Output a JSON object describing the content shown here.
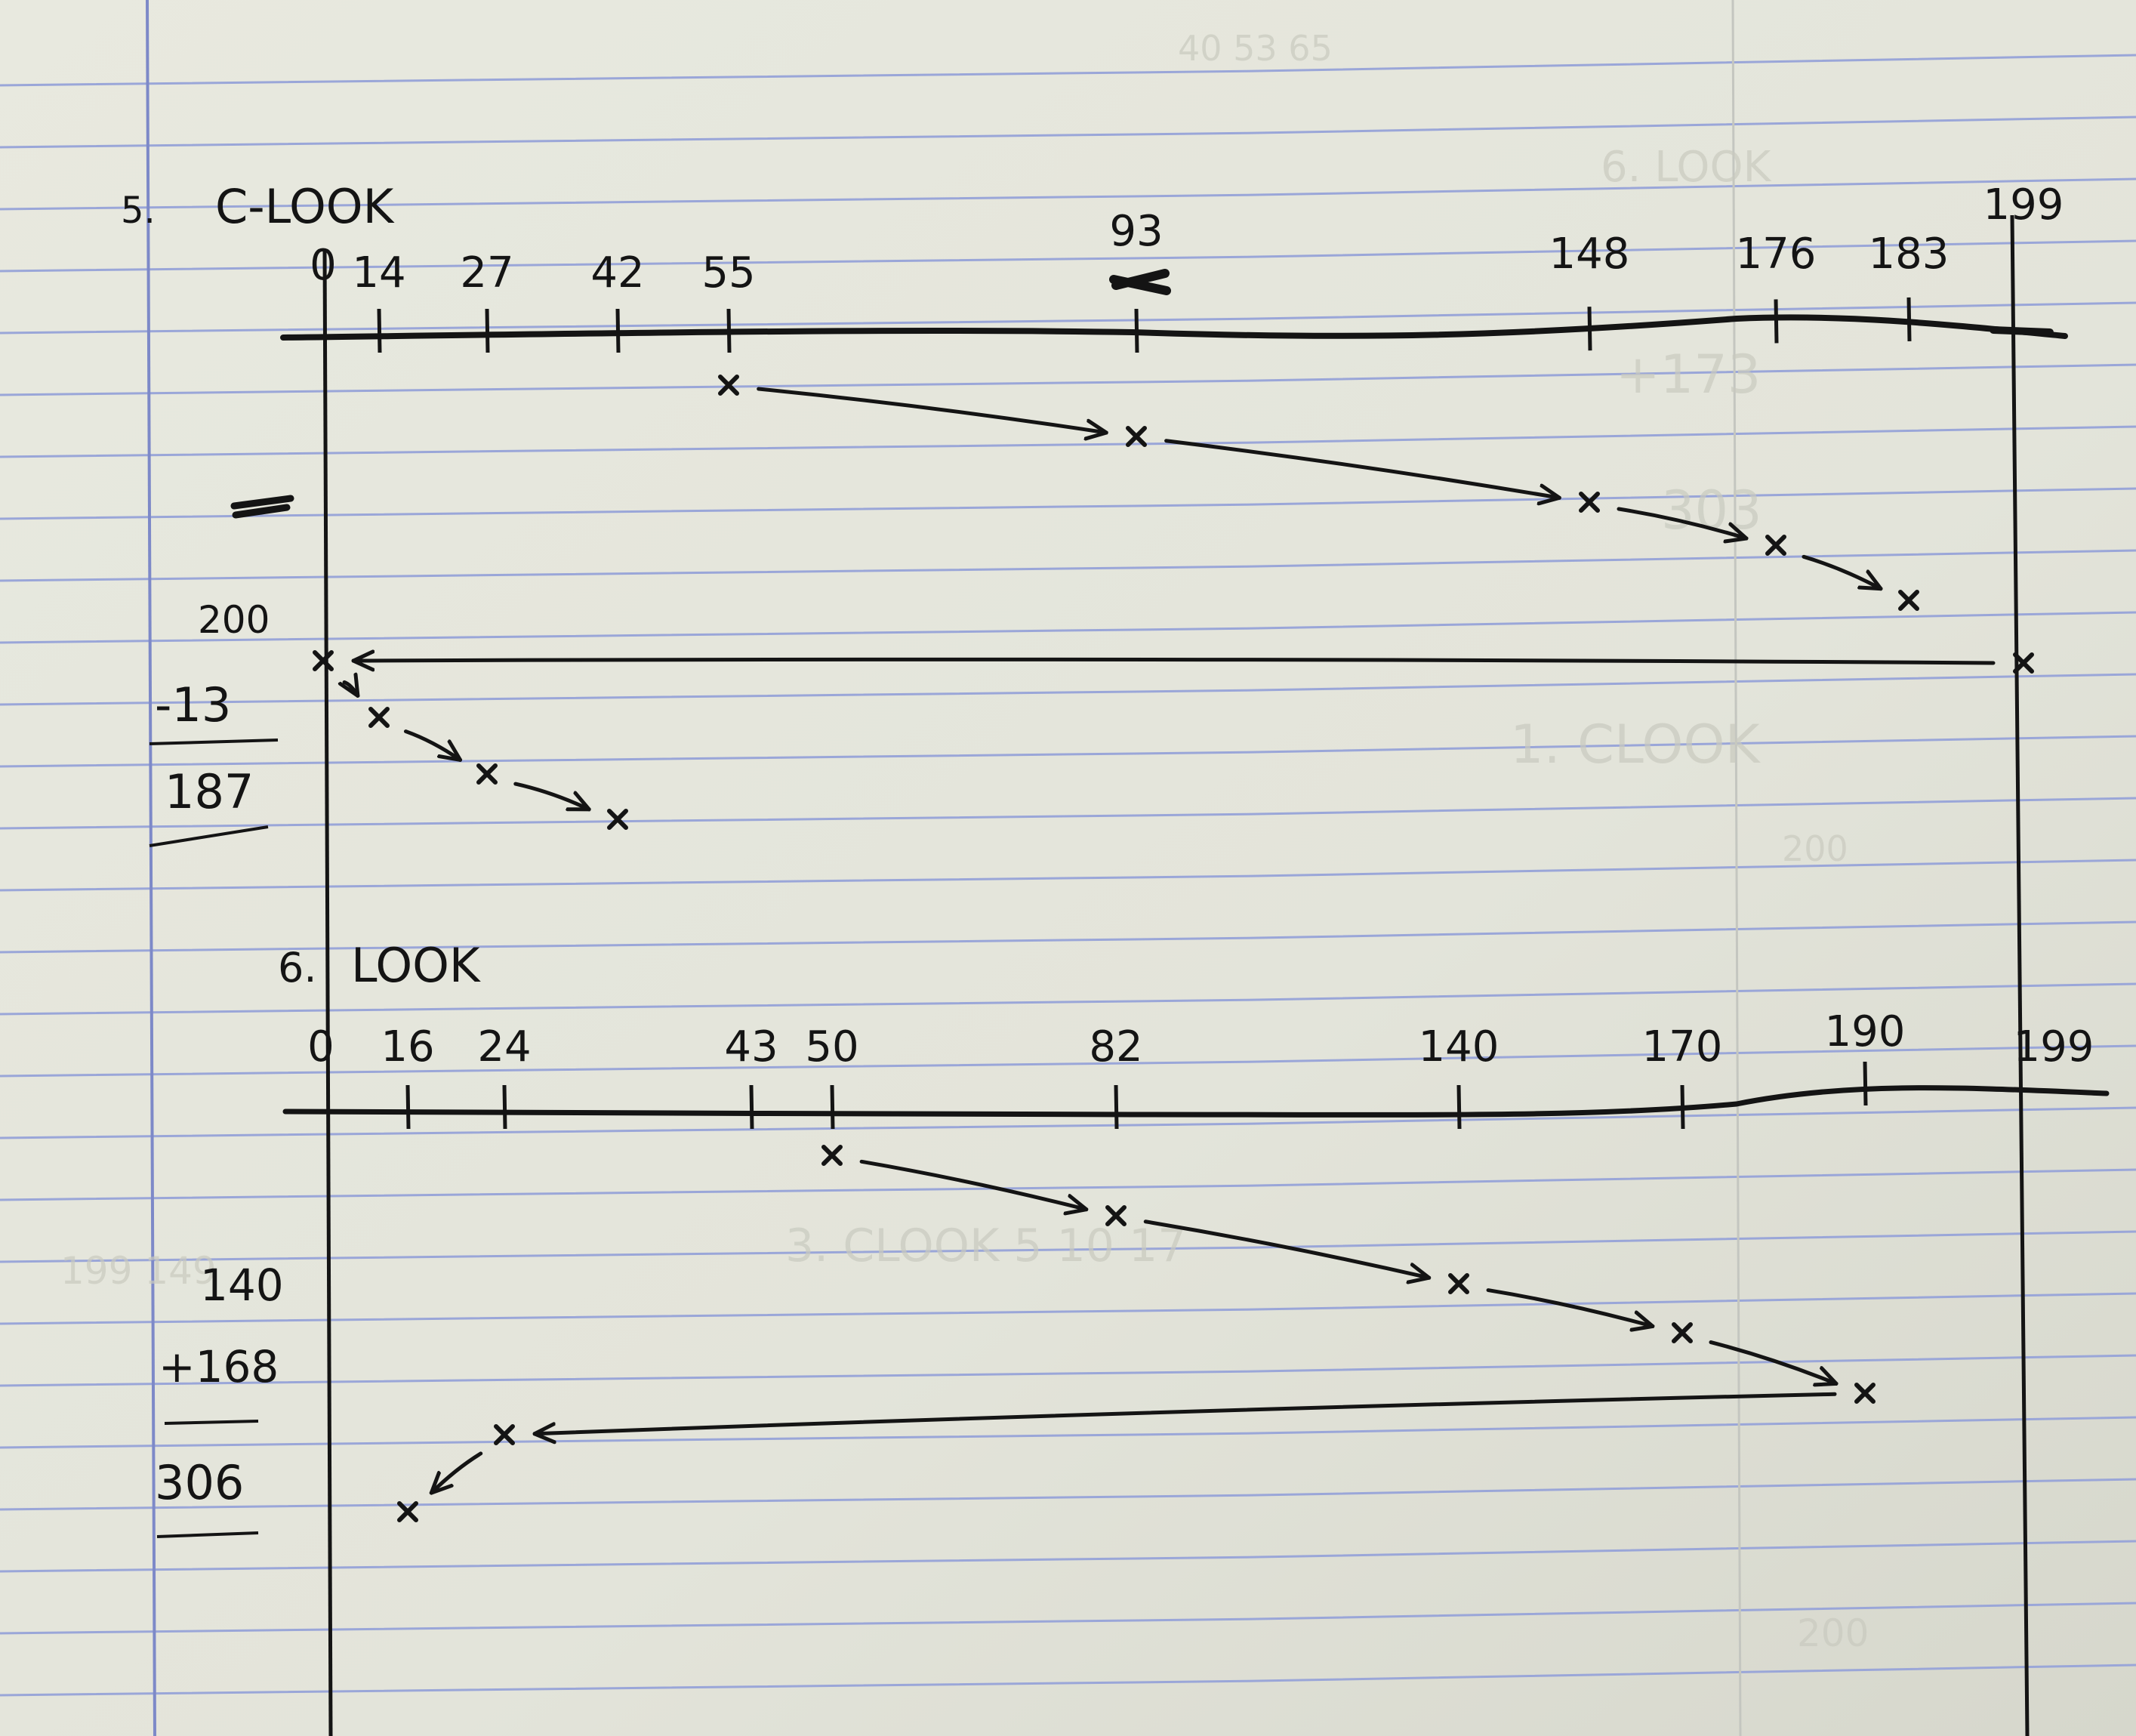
{
  "problems": [
    {
      "id": "c-look",
      "number": "5.",
      "title": "C-LOOK",
      "ticks": [
        "0",
        "14",
        "27",
        "42",
        "55",
        "93",
        "148",
        "176",
        "183",
        "199"
      ],
      "tick_values": [
        0,
        14,
        27,
        42,
        55,
        93,
        148,
        176,
        183,
        199
      ],
      "service_order": [
        55,
        93,
        148,
        176,
        183,
        199,
        0,
        14,
        27,
        42
      ],
      "calc": {
        "line1": "200",
        "line2": "-13",
        "result": "187"
      }
    },
    {
      "id": "look",
      "number": "6.",
      "title": "LOOK",
      "ticks": [
        "0",
        "16",
        "24",
        "43",
        "50",
        "82",
        "140",
        "170",
        "190",
        "199"
      ],
      "tick_values": [
        0,
        16,
        24,
        43,
        50,
        82,
        140,
        170,
        190,
        199
      ],
      "service_order": [
        50,
        82,
        140,
        170,
        190,
        24,
        16
      ],
      "calc": {
        "line1": "140",
        "line2": "+168",
        "result": "306"
      }
    }
  ],
  "colors": {
    "paper": "#e4e5db",
    "rule_line": "#9aa6d8",
    "margin_line": "#7d89c8",
    "ink": "#141414"
  }
}
